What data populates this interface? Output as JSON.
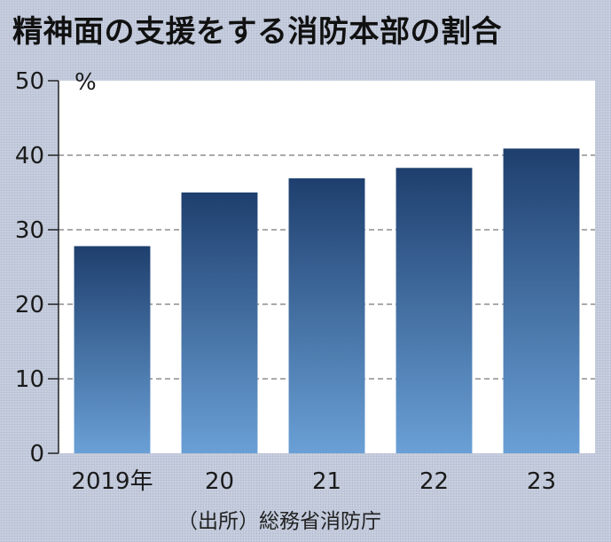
{
  "chart_data": {
    "type": "bar",
    "title": "精神面の支援をする消防本部の割合",
    "unit": "%",
    "categories": [
      "2019年",
      "20",
      "21",
      "22",
      "23"
    ],
    "values": [
      27.8,
      35.0,
      36.9,
      38.3,
      40.9
    ],
    "ylim": [
      0,
      50
    ],
    "yticks": [
      0,
      10,
      20,
      30,
      40,
      50
    ],
    "grid": true,
    "source": "（出所）総務省消防庁",
    "colors": {
      "bar_top": "#1e3f6e",
      "bar_bottom": "#6aa0d6",
      "plot_background": "#ffffff",
      "gridline": "#777777"
    }
  }
}
